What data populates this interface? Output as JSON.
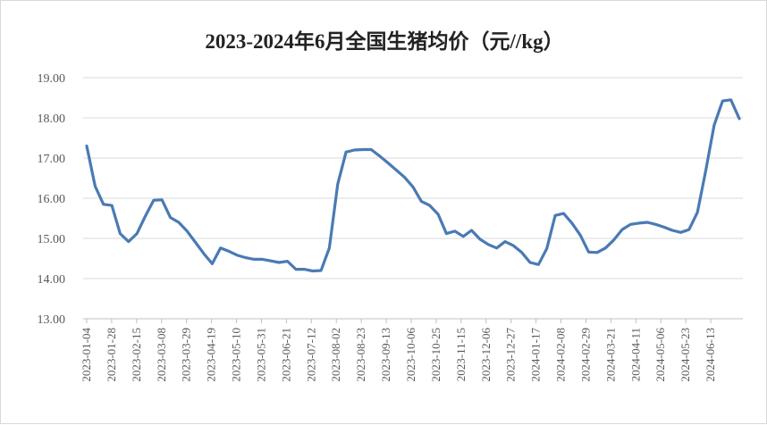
{
  "colors": {
    "line": "#4a7ab4",
    "grid": "#d9d9d9",
    "axis": "#bfbfbf",
    "text": "#595959"
  },
  "chart_data": {
    "type": "line",
    "title": "2023-2024年6月全国生猪均价（元//kg）",
    "xlabel": "",
    "ylabel": "",
    "ylim": [
      13,
      19
    ],
    "yticks": [
      "13.00",
      "14.00",
      "15.00",
      "16.00",
      "17.00",
      "18.00",
      "19.00"
    ],
    "grid": true,
    "legend": "none",
    "xtick_labels": [
      "2023-01-04",
      "2023-01-28",
      "2023-02-15",
      "2023-03-08",
      "2023-03-29",
      "2023-04-19",
      "2023-05-10",
      "2023-05-31",
      "2023-06-21",
      "2023-07-12",
      "2023-08-02",
      "2023-08-23",
      "2023-09-13",
      "2023-10-06",
      "2023-10-25",
      "2023-11-15",
      "2023-12-06",
      "2023-12-27",
      "2024-01-17",
      "2024-02-08",
      "2024-02-29",
      "2024-03-21",
      "2024-04-11",
      "2024-05-06",
      "2024-05-23",
      "2024-06-13"
    ],
    "series": [
      {
        "values": [
          17.3,
          16.3,
          15.85,
          15.82,
          15.12,
          14.92,
          15.12,
          15.55,
          15.95,
          15.96,
          15.52,
          15.4,
          15.18,
          14.9,
          14.62,
          14.37,
          14.76,
          14.68,
          14.58,
          14.52,
          14.48,
          14.48,
          14.44,
          14.4,
          14.43,
          14.23,
          14.23,
          14.19,
          14.2,
          14.76,
          16.35,
          17.15,
          17.2,
          17.21,
          17.21,
          17.05,
          16.88,
          16.7,
          16.52,
          16.28,
          15.92,
          15.82,
          15.6,
          15.12,
          15.18,
          15.05,
          15.2,
          14.98,
          14.85,
          14.76,
          14.92,
          14.82,
          14.65,
          14.4,
          14.35,
          14.75,
          15.57,
          15.62,
          15.38,
          15.08,
          14.66,
          14.65,
          14.76,
          14.96,
          15.22,
          15.35,
          15.38,
          15.4,
          15.35,
          15.28,
          15.2,
          15.15,
          15.22,
          15.65,
          16.7,
          17.82,
          18.42,
          18.45,
          17.98
        ]
      }
    ]
  }
}
